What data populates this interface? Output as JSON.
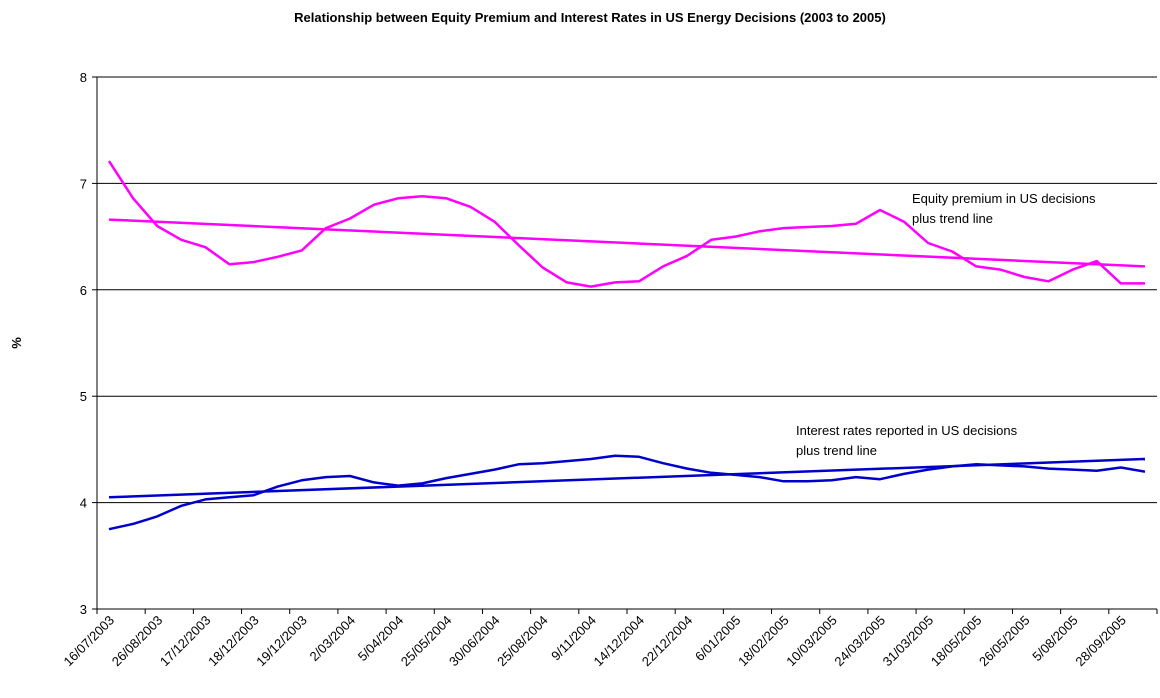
{
  "chart_data": {
    "type": "line",
    "title": "Relationship between Equity Premium and Interest Rates in US Energy Decisions (2003 to 2005)",
    "y_label": "%",
    "categories": [
      "16/07/2003",
      null,
      "26/08/2003",
      null,
      "17/12/2003",
      null,
      "18/12/2003",
      null,
      "19/12/2003",
      null,
      "2/03/2004",
      null,
      "5/04/2004",
      null,
      "25/05/2004",
      null,
      "30/06/2004",
      null,
      "25/08/2004",
      null,
      "9/11/2004",
      null,
      "14/12/2004",
      null,
      "22/12/2004",
      null,
      "6/01/2005",
      null,
      "18/02/2005",
      null,
      "10/03/2005",
      null,
      "24/03/2005",
      null,
      "31/03/2005",
      null,
      "18/05/2005",
      null,
      "26/05/2005",
      null,
      "5/08/2005",
      null,
      "28/09/2005",
      null
    ],
    "series": [
      {
        "color": "#ff00ff",
        "label_lines": [
          "Equity premium in US decisions",
          "plus trend line"
        ],
        "trend": [
          6.66,
          6.22
        ],
        "values": [
          7.21,
          6.86,
          6.6,
          6.47,
          6.4,
          6.24,
          6.26,
          6.31,
          6.37,
          6.58,
          6.67,
          6.8,
          6.86,
          6.88,
          6.86,
          6.78,
          6.64,
          6.42,
          6.21,
          6.07,
          6.03,
          6.07,
          6.08,
          6.22,
          6.32,
          6.47,
          6.5,
          6.55,
          6.58,
          6.59,
          6.6,
          6.62,
          6.75,
          6.64,
          6.44,
          6.36,
          6.22,
          6.19,
          6.12,
          6.08,
          6.19,
          6.27,
          6.06,
          6.06
        ]
      },
      {
        "color": "#0000cc",
        "label_lines": [
          "Interest rates reported in US decisions",
          "plus trend line"
        ],
        "trend": [
          4.05,
          4.41
        ],
        "values": [
          3.75,
          3.8,
          3.87,
          3.97,
          4.03,
          4.05,
          4.07,
          4.15,
          4.21,
          4.24,
          4.25,
          4.19,
          4.16,
          4.18,
          4.23,
          4.27,
          4.31,
          4.36,
          4.37,
          4.39,
          4.41,
          4.44,
          4.43,
          4.37,
          4.32,
          4.28,
          4.26,
          4.24,
          4.2,
          4.2,
          4.21,
          4.24,
          4.22,
          4.27,
          4.31,
          4.34,
          4.36,
          4.35,
          4.34,
          4.32,
          4.31,
          4.3,
          4.33,
          4.29
        ]
      }
    ],
    "ylim": [
      3,
      8
    ],
    "yticks": [
      3,
      4,
      5,
      6,
      7,
      8
    ],
    "grid": true
  }
}
